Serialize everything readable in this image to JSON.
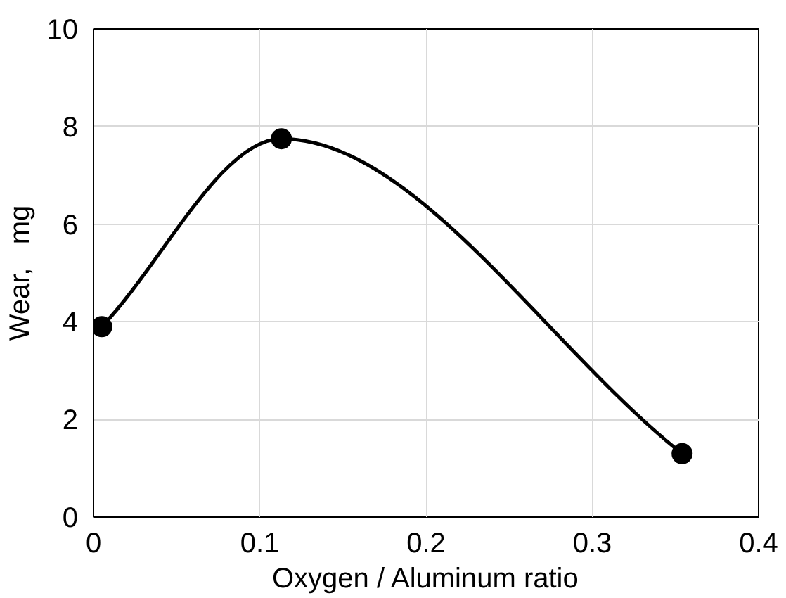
{
  "chart_data": {
    "type": "line",
    "xlabel": "Oxygen / Aluminum ratio",
    "ylabel": "Wear,   mg",
    "x": [
      0.005,
      0.113,
      0.354
    ],
    "series": [
      {
        "color": "#000000",
        "values": [
          3.9,
          7.75,
          1.3
        ]
      }
    ],
    "xlim": [
      0,
      0.4
    ],
    "ylim": [
      0,
      10
    ],
    "xticks": [
      0,
      0.1,
      0.2,
      0.3,
      0.4
    ],
    "yticks": [
      0,
      2,
      4,
      6,
      8,
      10
    ],
    "grid": true,
    "marker": "circle",
    "line_style": "solid"
  }
}
